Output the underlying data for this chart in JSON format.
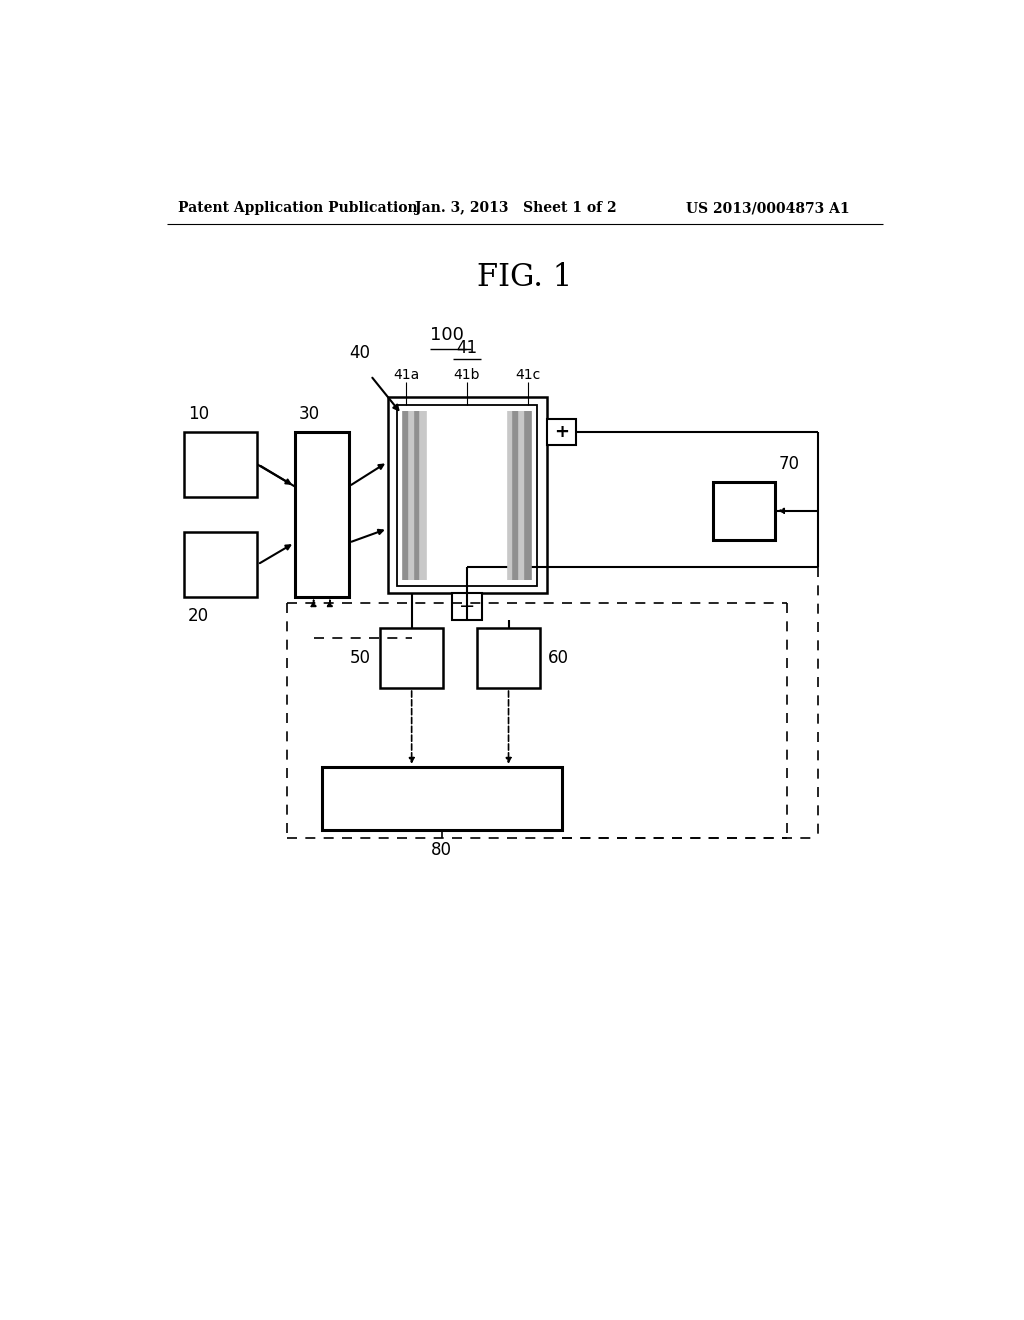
{
  "bg_color": "#ffffff",
  "header_left": "Patent Application Publication",
  "header_mid": "Jan. 3, 2013   Sheet 1 of 2",
  "header_right": "US 2013/0004873 A1",
  "fig_label": "FIG. 1",
  "system_label": "100"
}
